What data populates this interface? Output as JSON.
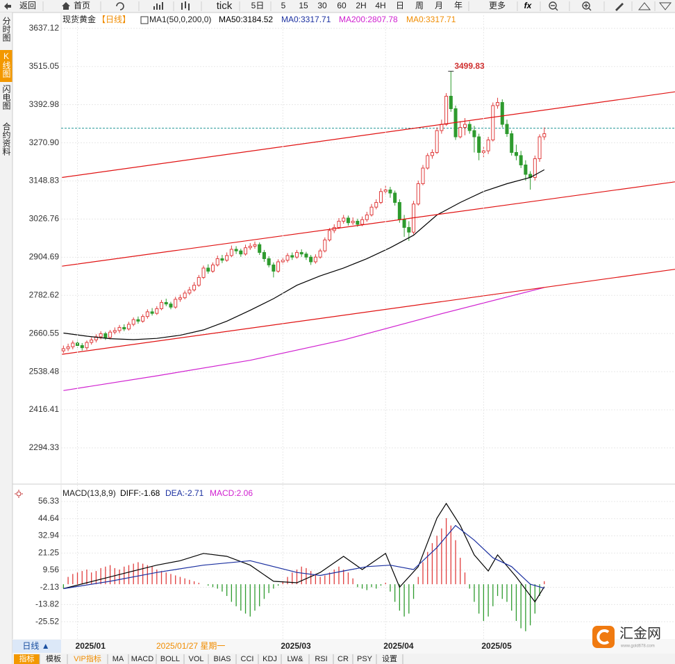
{
  "toolbar": {
    "items": [
      "返回",
      "首页",
      "tick",
      "5日",
      "5",
      "15",
      "30",
      "60",
      "2H",
      "4H",
      "日",
      "周",
      "月",
      "年",
      "更多"
    ]
  },
  "sidebar": [
    "分时图",
    "K线图",
    "闪电图",
    "合约资料"
  ],
  "header": {
    "symbol": "现货黄金",
    "period": "【日线】",
    "ma_setting": "MA1(50,0,200,0)",
    "ma_values": [
      "MA50:3184.52",
      "MA0:3317.71",
      "MA200:2807.78",
      "MA0:3317.71"
    ],
    "ma_colors": [
      "#000000",
      "#1a2fa0",
      "#d020d0",
      "#f08c00"
    ]
  },
  "chart_data": [
    {
      "type": "candlestick",
      "up_color": "#e03c3c",
      "down_color": "#2e9b2e",
      "grid": true,
      "xlim": [
        -0.5,
        131
      ],
      "xticks": [
        {
          "value": 3,
          "label": "2025/01"
        },
        {
          "value": 47,
          "label": "2025/03"
        },
        {
          "value": 69,
          "label": "2025/04"
        },
        {
          "value": 90,
          "label": "2025/05"
        }
      ],
      "ylim": [
        2183,
        3679
      ],
      "yticks": [
        3637.12,
        3515.05,
        3392.98,
        {
          "value": 3270.9,
          "label": "3270.90"
        },
        3148.83,
        3026.76,
        2904.69,
        2782.62,
        2660.55,
        2538.48,
        2416.41,
        2294.33
      ],
      "price_line": 3317.71,
      "price_line_color": "#2a9a9a",
      "candles": [
        [
          2605,
          2622,
          2598,
          2612
        ],
        [
          2612,
          2628,
          2604,
          2618
        ],
        [
          2618,
          2638,
          2610,
          2630
        ],
        [
          2630,
          2640,
          2615,
          2622
        ],
        [
          2622,
          2630,
          2606,
          2615
        ],
        [
          2615,
          2638,
          2608,
          2632
        ],
        [
          2632,
          2648,
          2625,
          2640
        ],
        [
          2640,
          2658,
          2632,
          2650
        ],
        [
          2650,
          2668,
          2642,
          2660
        ],
        [
          2660,
          2666,
          2640,
          2648
        ],
        [
          2648,
          2672,
          2642,
          2665
        ],
        [
          2665,
          2680,
          2658,
          2670
        ],
        [
          2670,
          2688,
          2662,
          2680
        ],
        [
          2680,
          2690,
          2668,
          2675
        ],
        [
          2675,
          2698,
          2670,
          2690
        ],
        [
          2690,
          2712,
          2684,
          2705
        ],
        [
          2705,
          2715,
          2692,
          2700
        ],
        [
          2700,
          2722,
          2695,
          2715
        ],
        [
          2715,
          2738,
          2708,
          2730
        ],
        [
          2730,
          2742,
          2718,
          2725
        ],
        [
          2725,
          2748,
          2720,
          2740
        ],
        [
          2740,
          2768,
          2735,
          2760
        ],
        [
          2760,
          2772,
          2748,
          2755
        ],
        [
          2755,
          2762,
          2738,
          2745
        ],
        [
          2745,
          2778,
          2740,
          2770
        ],
        [
          2770,
          2785,
          2762,
          2775
        ],
        [
          2775,
          2798,
          2770,
          2790
        ],
        [
          2790,
          2810,
          2784,
          2800
        ],
        [
          2800,
          2825,
          2795,
          2815
        ],
        [
          2815,
          2848,
          2810,
          2840
        ],
        [
          2840,
          2878,
          2835,
          2870
        ],
        [
          2870,
          2882,
          2852,
          2860
        ],
        [
          2860,
          2888,
          2855,
          2880
        ],
        [
          2880,
          2910,
          2875,
          2900
        ],
        [
          2900,
          2912,
          2886,
          2895
        ],
        [
          2895,
          2920,
          2890,
          2910
        ],
        [
          2910,
          2942,
          2905,
          2930
        ],
        [
          2930,
          2940,
          2915,
          2925
        ],
        [
          2925,
          2932,
          2906,
          2915
        ],
        [
          2915,
          2945,
          2910,
          2935
        ],
        [
          2935,
          2950,
          2928,
          2940
        ],
        [
          2940,
          2955,
          2932,
          2945
        ],
        [
          2945,
          2952,
          2912,
          2920
        ],
        [
          2920,
          2928,
          2890,
          2900
        ],
        [
          2900,
          2908,
          2872,
          2880
        ],
        [
          2880,
          2888,
          2840,
          2860
        ],
        [
          2860,
          2898,
          2855,
          2890
        ],
        [
          2890,
          2905,
          2882,
          2895
        ],
        [
          2895,
          2918,
          2888,
          2910
        ],
        [
          2910,
          2920,
          2896,
          2905
        ],
        [
          2905,
          2928,
          2900,
          2920
        ],
        [
          2920,
          2930,
          2906,
          2915
        ],
        [
          2915,
          2922,
          2896,
          2905
        ],
        [
          2905,
          2912,
          2880,
          2890
        ],
        [
          2890,
          2914,
          2884,
          2905
        ],
        [
          2905,
          2932,
          2900,
          2925
        ],
        [
          2925,
          2968,
          2920,
          2960
        ],
        [
          2960,
          2998,
          2955,
          2990
        ],
        [
          2990,
          3010,
          2982,
          3000
        ],
        [
          3000,
          3030,
          2995,
          3020
        ],
        [
          3020,
          3040,
          3012,
          3030
        ],
        [
          3030,
          3038,
          3006,
          3015
        ],
        [
          3015,
          3032,
          3008,
          3020
        ],
        [
          3020,
          3028,
          3002,
          3010
        ],
        [
          3010,
          3035,
          3004,
          3025
        ],
        [
          3025,
          3050,
          3018,
          3040
        ],
        [
          3040,
          3075,
          3035,
          3065
        ],
        [
          3065,
          3090,
          3058,
          3080
        ],
        [
          3080,
          3125,
          3075,
          3115
        ],
        [
          3115,
          3135,
          3105,
          3120
        ],
        [
          3120,
          3130,
          3095,
          3110
        ],
        [
          3110,
          3118,
          3070,
          3080
        ],
        [
          3080,
          3090,
          3015,
          3025
        ],
        [
          3025,
          3040,
          2970,
          3000
        ],
        [
          3000,
          3020,
          2957,
          2985
        ],
        [
          2985,
          3085,
          2978,
          3075
        ],
        [
          3075,
          3150,
          3070,
          3140
        ],
        [
          3140,
          3200,
          3135,
          3190
        ],
        [
          3190,
          3238,
          3185,
          3230
        ],
        [
          3230,
          3250,
          3220,
          3240
        ],
        [
          3240,
          3320,
          3235,
          3310
        ],
        [
          3310,
          3345,
          3300,
          3330
        ],
        [
          3330,
          3430,
          3325,
          3420
        ],
        [
          3420,
          3499.83,
          3370,
          3380
        ],
        [
          3380,
          3390,
          3280,
          3290
        ],
        [
          3290,
          3340,
          3285,
          3320
        ],
        [
          3320,
          3350,
          3295,
          3330
        ],
        [
          3330,
          3340,
          3300,
          3310
        ],
        [
          3310,
          3325,
          3240,
          3290
        ],
        [
          3290,
          3300,
          3215,
          3240
        ],
        [
          3240,
          3260,
          3225,
          3245
        ],
        [
          3245,
          3290,
          3235,
          3280
        ],
        [
          3280,
          3400,
          3275,
          3390
        ],
        [
          3390,
          3415,
          3380,
          3400
        ],
        [
          3400,
          3410,
          3320,
          3330
        ],
        [
          3330,
          3345,
          3290,
          3300
        ],
        [
          3300,
          3310,
          3230,
          3240
        ],
        [
          3240,
          3265,
          3215,
          3230
        ],
        [
          3230,
          3245,
          3190,
          3200
        ],
        [
          3200,
          3215,
          3150,
          3170
        ],
        [
          3170,
          3180,
          3121,
          3160
        ],
        [
          3160,
          3230,
          3150,
          3220
        ],
        [
          3220,
          3298,
          3210,
          3290
        ],
        [
          3290,
          3320,
          3280,
          3300
        ]
      ],
      "lines": [
        {
          "color": "#000000",
          "x": [
            0,
            5,
            10,
            15,
            20,
            25,
            30,
            35,
            40,
            45,
            50,
            55,
            60,
            65,
            70,
            75,
            80,
            85,
            90,
            95,
            100,
            103
          ],
          "values": [
            2662,
            2652,
            2644,
            2641,
            2645,
            2655,
            2672,
            2700,
            2735,
            2772,
            2815,
            2845,
            2870,
            2900,
            2935,
            2975,
            3040,
            3080,
            3115,
            3140,
            3160,
            3184.52
          ]
        },
        {
          "color": "#d020d0",
          "x": [
            0,
            20,
            40,
            60,
            80,
            103
          ],
          "values": [
            2478,
            2525,
            2575,
            2640,
            2720,
            2807.78
          ]
        },
        {
          "color": "#e01010",
          "x": [
            -0.3,
            131
          ],
          "values": [
            3160,
            3434
          ]
        },
        {
          "color": "#e01010",
          "x": [
            -0.3,
            131
          ],
          "values": [
            2876,
            3146
          ]
        },
        {
          "color": "#e01010",
          "x": [
            -0.3,
            131
          ],
          "values": [
            2594,
            2866
          ]
        }
      ]
    },
    {
      "type": "macd",
      "title": "MACD(13,8,9)",
      "labels": [
        "DIFF:-1.68",
        "DEA:-2.71",
        "MACD:2.06"
      ],
      "label_colors": [
        "#000000",
        "#1a2fa0",
        "#d020d0"
      ],
      "up_color": "#e03c3c",
      "down_color": "#2e9b2e",
      "ylim": [
        -37.3,
        64.4
      ],
      "yticks": [
        56.33,
        44.64,
        32.94,
        21.25,
        9.56,
        -2.13,
        -13.82,
        -25.52
      ],
      "histogram": [
        -3,
        5,
        7,
        8,
        9,
        10,
        8,
        9,
        11,
        12,
        13,
        11,
        10,
        12,
        13,
        14,
        15,
        14,
        13,
        12,
        10,
        9,
        8,
        7,
        6,
        5,
        4,
        3,
        2,
        1,
        0,
        -1,
        -2,
        -3,
        -5,
        -8,
        -12,
        -15,
        -18,
        -20,
        -22,
        -18,
        -15,
        -10,
        -6,
        -3,
        -1,
        2,
        5,
        8,
        10,
        12,
        11,
        9,
        7,
        5,
        6,
        8,
        10,
        12,
        10,
        8,
        4,
        -2,
        -3,
        -4,
        -2,
        -3,
        -1,
        1,
        -5,
        -12,
        -18,
        -22,
        -20,
        -10,
        5,
        15,
        22,
        28,
        33,
        38,
        45,
        40,
        30,
        18,
        8,
        -3,
        -12,
        -20,
        -25,
        -22,
        -15,
        -8,
        -10,
        -12,
        -18,
        -25,
        -30,
        -32,
        -28,
        -20,
        -8,
        2.06
      ],
      "lines": [
        {
          "color": "#000000",
          "x": [
            0,
            5,
            10,
            15,
            20,
            25,
            30,
            35,
            40,
            45,
            50,
            55,
            60,
            64,
            69,
            72,
            76,
            80,
            82,
            85,
            88,
            91,
            93,
            97,
            101,
            103
          ],
          "values": [
            -3,
            1,
            5,
            9,
            13,
            16,
            21,
            19,
            13,
            2,
            1,
            8,
            19,
            10,
            21,
            -2,
            12,
            45,
            55,
            40,
            20,
            9,
            20,
            5,
            -12,
            -1.68
          ]
        },
        {
          "color": "#1a2fa0",
          "x": [
            0,
            10,
            20,
            30,
            40,
            50,
            55,
            60,
            65,
            70,
            75,
            80,
            84,
            88,
            92,
            96,
            100,
            103
          ],
          "values": [
            -3,
            2,
            8,
            13,
            16,
            8,
            6,
            9,
            12,
            13,
            10,
            25,
            40,
            30,
            18,
            12,
            0,
            -2.71
          ]
        }
      ]
    }
  ],
  "axis_bar": {
    "period_button": "日线 ▲",
    "cursor_date": "2025/01/27 星期一"
  },
  "tabs": [
    "指标",
    "模板",
    "VIP指标",
    "MA",
    "MACD",
    "BOLL",
    "VOL",
    "BIAS",
    "CCI",
    "KDJ",
    "LW&",
    "RSI",
    "CR",
    "PSY",
    "设置"
  ],
  "logo": {
    "name": "汇金网",
    "url": "www.gold678.com"
  }
}
